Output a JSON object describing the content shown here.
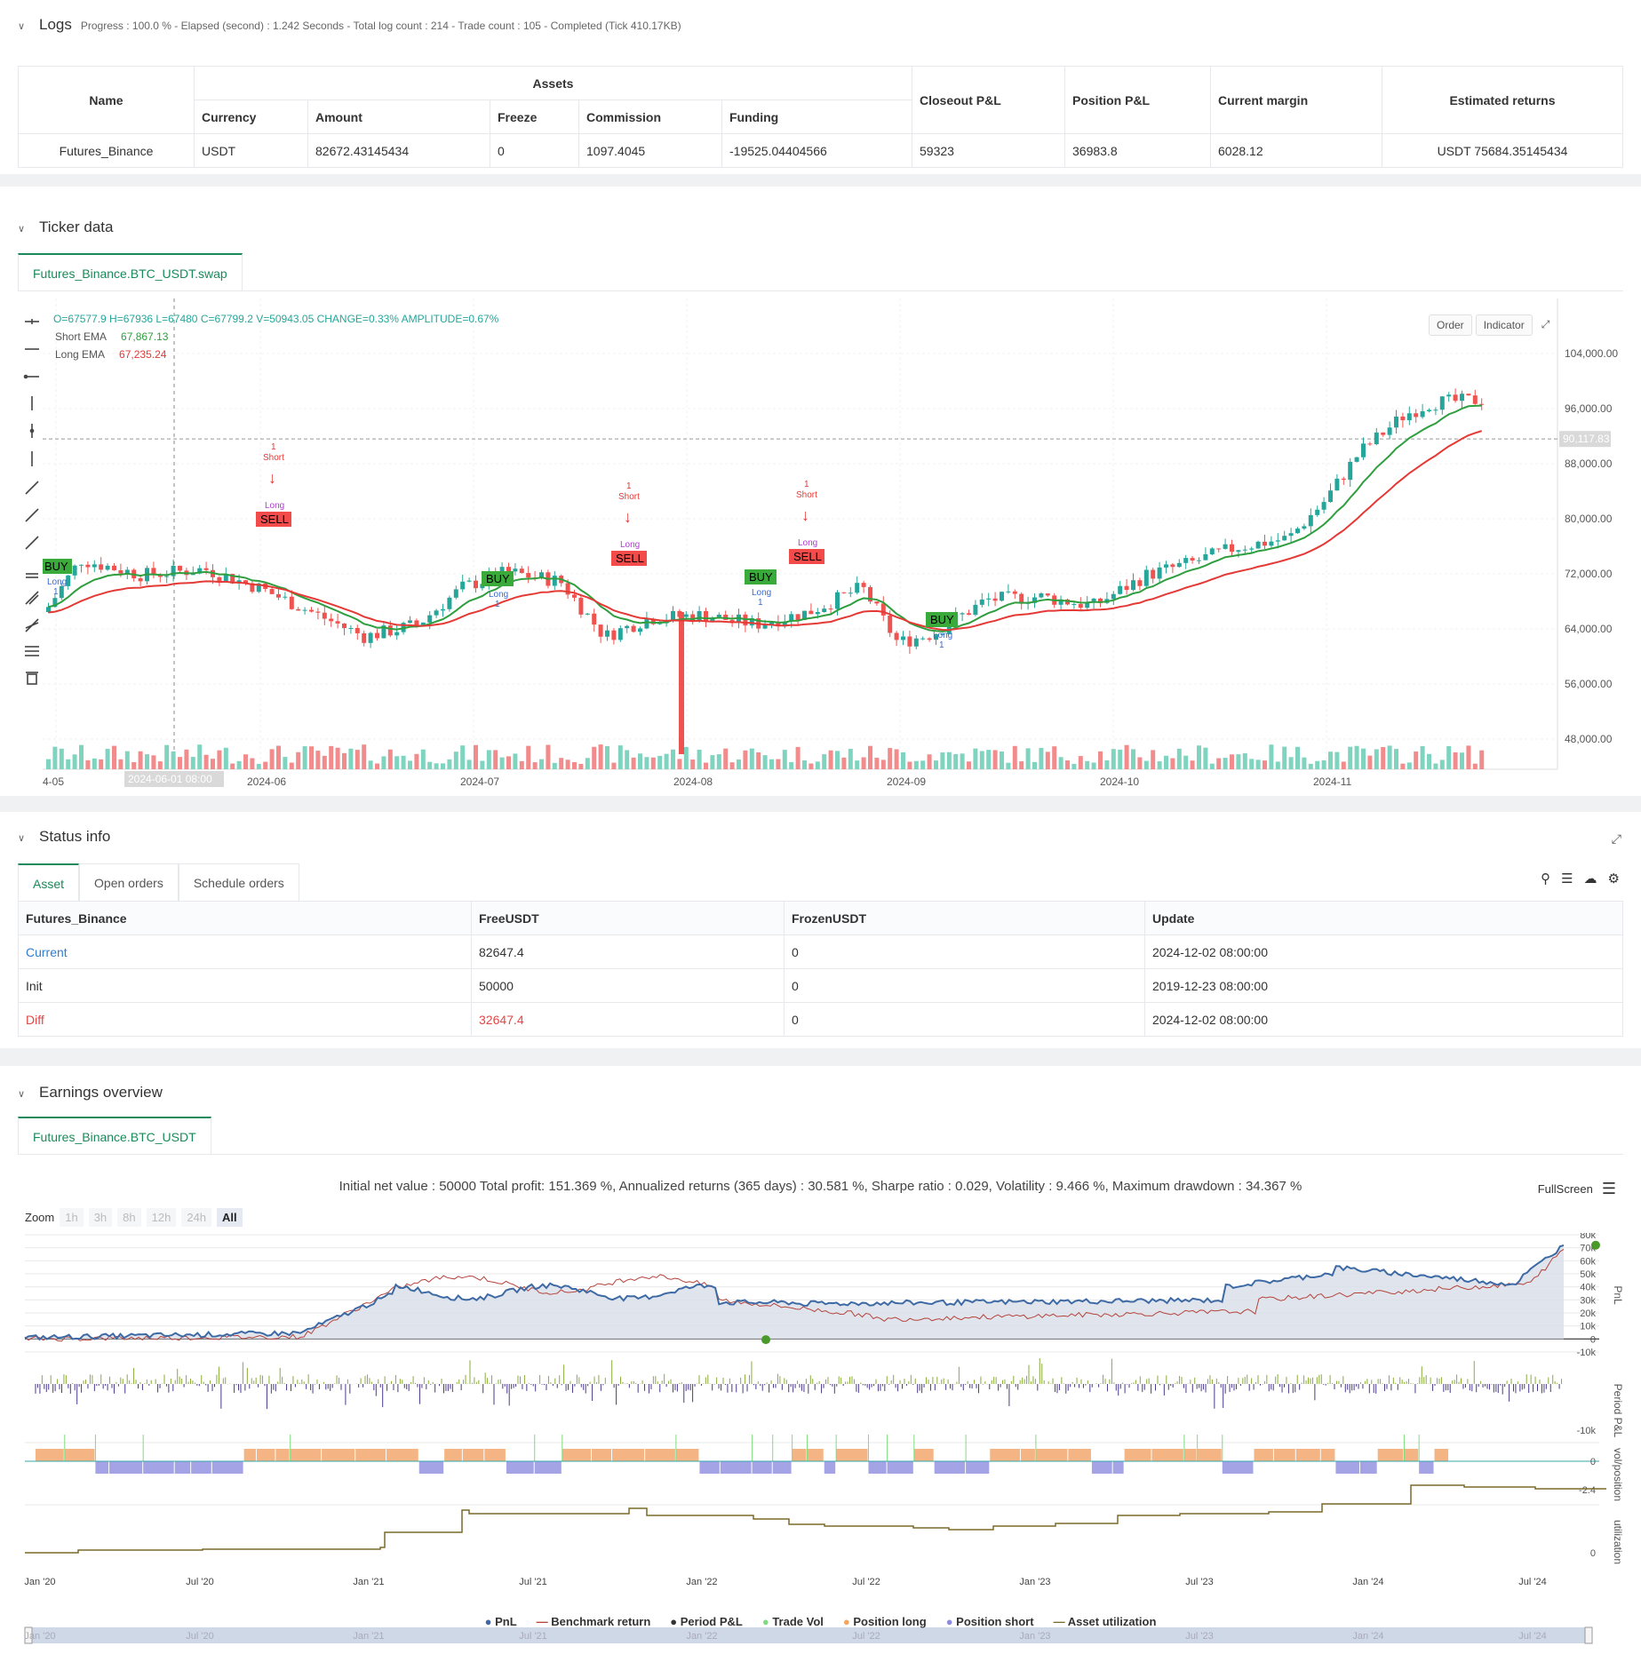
{
  "logs": {
    "title": "Logs",
    "summary": "Progress : 100.0 % - Elapsed (second) : 1.242  Seconds - Total log count : 214 - Trade count : 105 - Completed (Tick 410.17KB)",
    "table": {
      "h_name": "Name",
      "h_assets": "Assets",
      "h_currency": "Currency",
      "h_amount": "Amount",
      "h_freeze": "Freeze",
      "h_commission": "Commission",
      "h_funding": "Funding",
      "h_closeout": "Closeout P&L",
      "h_position": "Position P&L",
      "h_margin": "Current margin",
      "h_returns": "Estimated returns",
      "name": "Futures_Binance",
      "currency": "USDT",
      "amount": "82672.43145434",
      "freeze": "0",
      "commission": "1097.4045",
      "funding": "-19525.04404566",
      "closeout": "59323",
      "position": "36983.8",
      "margin": "6028.12",
      "returns": "USDT 75684.35145434"
    }
  },
  "ticker": {
    "title": "Ticker data",
    "tab": "Futures_Binance.BTC_USDT.swap",
    "ohlc": "O=67577.9 H=67936 L=67480 C=67799.2 V=50943.05 CHANGE=0.33% AMPLITUDE=0.67%",
    "short_ema_label": "Short EMA",
    "short_ema_value": "67,867.13",
    "long_ema_label": "Long EMA",
    "long_ema_value": "67,235.24",
    "btn_order": "Order",
    "btn_indicator": "Indicator",
    "price_ticks": [
      "104,000.00",
      "96,000.00",
      "88,000.00",
      "80,000.00",
      "72,000.00",
      "64,000.00",
      "56,000.00",
      "48,000.00"
    ],
    "current_price": "90,117.83",
    "date_ticks": [
      "4-05",
      "2024-06",
      "2024-07",
      "2024-08",
      "2024-09",
      "2024-10",
      "2024-11"
    ],
    "crosshair_date": "2024-06-01 08:00",
    "signals": {
      "buy": "BUY",
      "sell": "SELL",
      "long": "Long",
      "short": "Short",
      "one": "1"
    }
  },
  "status": {
    "title": "Status info",
    "tabs": [
      "Asset",
      "Open orders",
      "Schedule orders"
    ],
    "headers": [
      "Futures_Binance",
      "FreeUSDT",
      "FrozenUSDT",
      "Update"
    ],
    "rows": [
      [
        "Current",
        "82647.4",
        "0",
        "2024-12-02 08:00:00"
      ],
      [
        "Init",
        "50000",
        "0",
        "2019-12-23 08:00:00"
      ],
      [
        "Diff",
        "32647.4",
        "0",
        "2024-12-02 08:00:00"
      ]
    ]
  },
  "earnings": {
    "title": "Earnings overview",
    "tab": "Futures_Binance.BTC_USDT",
    "stats": "Initial net value : 50000 Total profit: 151.369 %, Annualized returns (365 days) : 30.581 %, Sharpe ratio : 0.029, Volatility : 9.466 %, Maximum drawdown : 34.367 %",
    "fullscreen": "FullScreen",
    "zoom_label": "Zoom",
    "zoom_options": [
      "1h",
      "3h",
      "8h",
      "12h",
      "24h",
      "All"
    ],
    "pnl_ticks": [
      "80k",
      "70k",
      "60k",
      "50k",
      "40k",
      "30k",
      "20k",
      "10k",
      "0",
      "-10k"
    ],
    "period_ticks": [
      "-10k"
    ],
    "vol_ticks": [
      "0",
      "-2.4"
    ],
    "util_ticks": [
      "0"
    ],
    "axis_titles": [
      "PnL",
      "Period P&L",
      "vol/position",
      "utilization"
    ],
    "x_ticks": [
      "Jan '20",
      "Jul '20",
      "Jan '21",
      "Jul '21",
      "Jan '22",
      "Jul '22",
      "Jan '23",
      "Jul '23",
      "Jan '24",
      "Jul '24"
    ],
    "legend": [
      {
        "label": "PnL",
        "color": "#3d6aa5"
      },
      {
        "label": "Benchmark return",
        "color": "#b5433b"
      },
      {
        "label": "Period P&L",
        "color": "#333333"
      },
      {
        "label": "Trade Vol",
        "color": "#7fdc7f"
      },
      {
        "label": "Position long",
        "color": "#f4a460"
      },
      {
        "label": "Position short",
        "color": "#8b8be0"
      },
      {
        "label": "Asset utilization",
        "color": "#7a6a2a"
      }
    ]
  },
  "colors": {
    "accent": "#1a8a5a",
    "up": "#26a69a",
    "down": "#ef5350",
    "ema_short": "#2e9e3e",
    "ema_long": "#e53935"
  }
}
